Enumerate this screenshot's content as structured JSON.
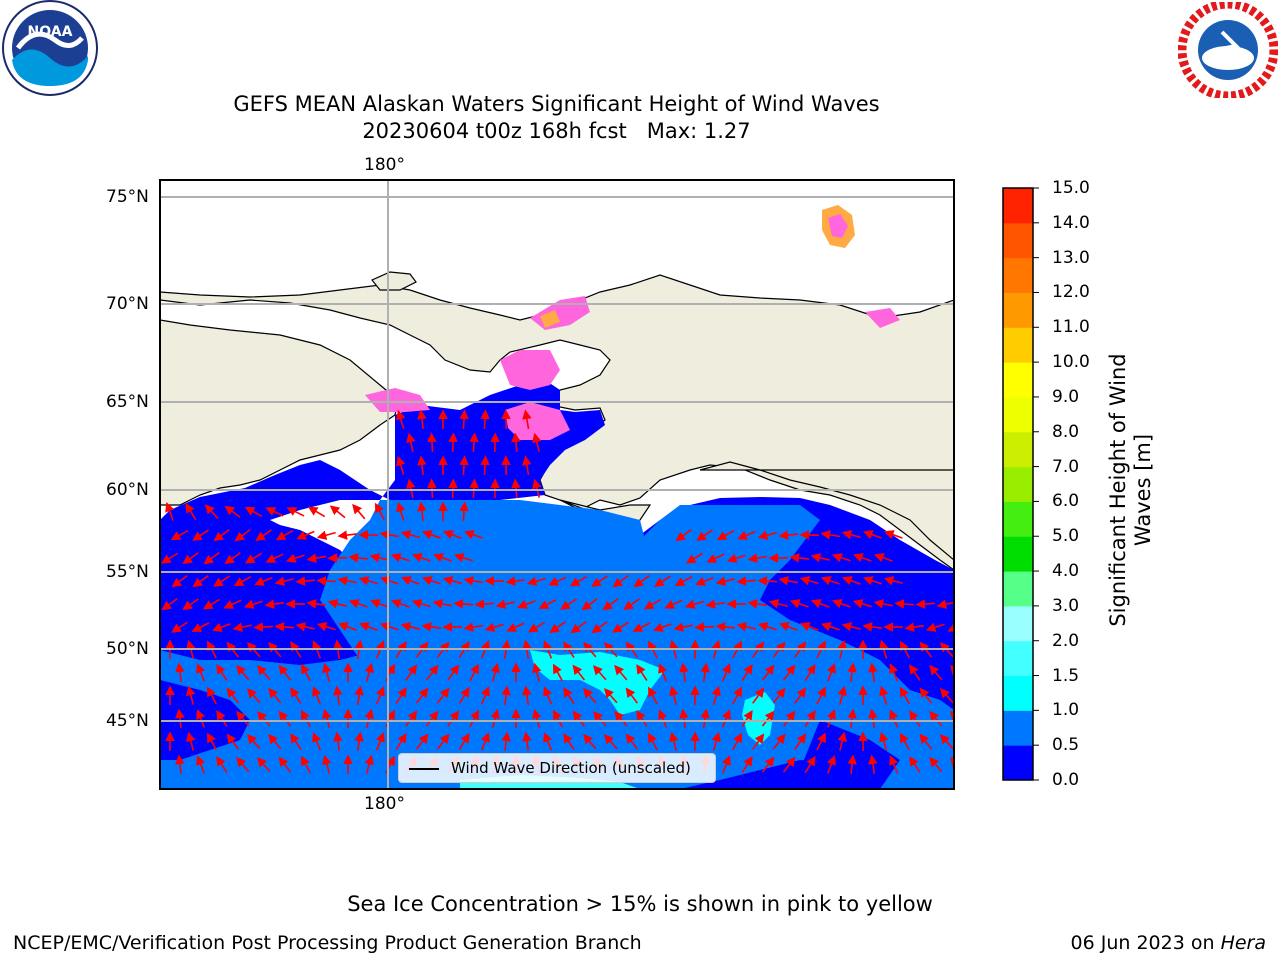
{
  "logos": {
    "left_text": "NOAA",
    "left_ring": "NATIONAL OCEANIC AND ATMOSPHERIC ADMINISTRATION · U.S. DEPARTMENT OF COMMERCE",
    "right_ring": "NATIONAL WEATHER SERVICE"
  },
  "title": {
    "line1": "GEFS MEAN Alaskan Waters Significant Height of Wind Waves",
    "line2": "20230604 t00z 168h fcst   Max: 1.27"
  },
  "map": {
    "lat_labels": [
      "75°N",
      "70°N",
      "65°N",
      "60°N",
      "55°N",
      "50°N",
      "45°N"
    ],
    "lon_label_top": "180°",
    "lon_label_bottom": "180°",
    "legend_text": "Wind Wave Direction (unscaled)",
    "colors": {
      "land": "#efedde",
      "ocean_low": "#0000ff",
      "ocean_mid": "#0077ff",
      "ocean_high": "#00ffff",
      "ice_pink": "#ff66dd",
      "ice_orange": "#ffaa44",
      "arrow": "#ff0000",
      "grid": "#b0b0b0"
    }
  },
  "colorbar": {
    "label": "Significant Height of Wind Waves [m]",
    "ticks": [
      "0.0",
      "0.5",
      "1.0",
      "1.5",
      "2.0",
      "3.0",
      "4.0",
      "5.0",
      "6.0",
      "7.0",
      "8.0",
      "9.0",
      "10.0",
      "11.0",
      "12.0",
      "13.0",
      "14.0",
      "15.0"
    ],
    "colors": [
      "#0000ff",
      "#0077ff",
      "#00ffff",
      "#44ffff",
      "#99ffff",
      "#55ff88",
      "#00dd00",
      "#44ee11",
      "#99ee00",
      "#ccee00",
      "#eeff00",
      "#ffff00",
      "#ffcc00",
      "#ff9900",
      "#ff7700",
      "#ff5500",
      "#ff2200"
    ]
  },
  "footer": {
    "note": "Sea Ice Concentration > 15% is shown in pink to yellow",
    "left": "NCEP/EMC/Verification Post Processing Product Generation Branch",
    "right_date": "06 Jun 2023 on ",
    "right_host": "Hera"
  }
}
